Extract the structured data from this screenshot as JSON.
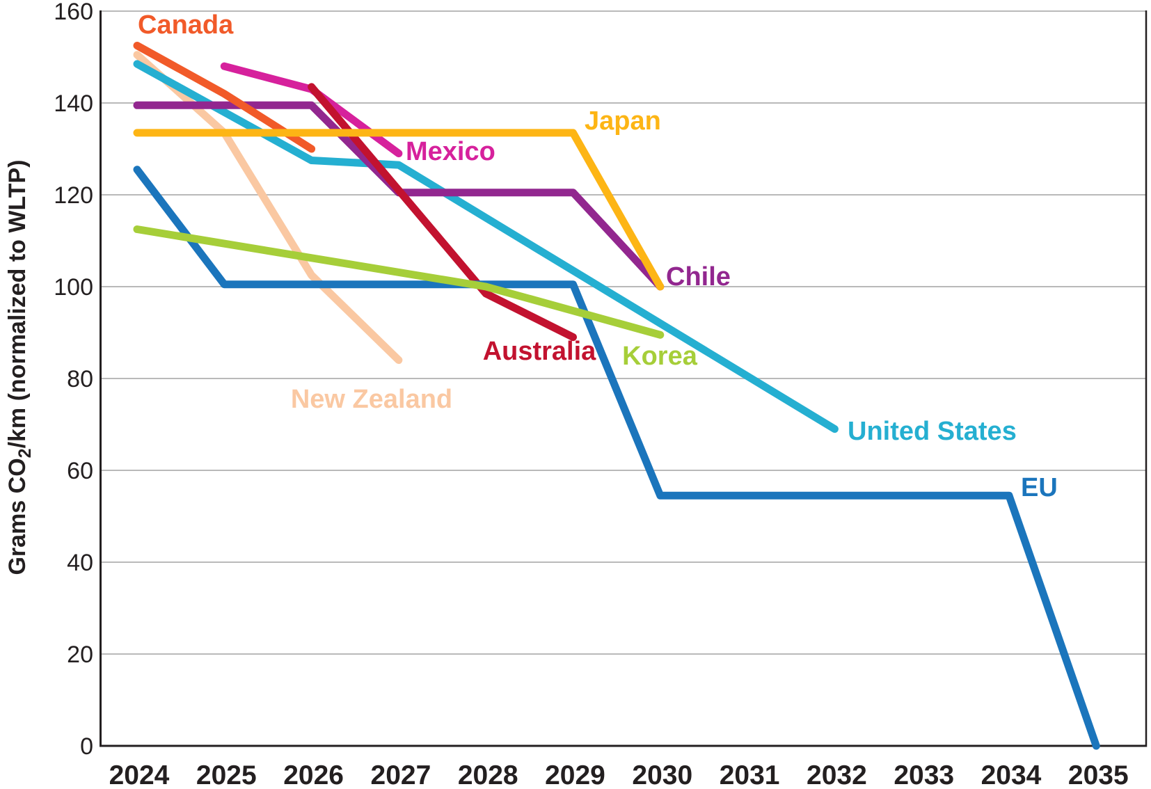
{
  "chart_data": {
    "type": "line",
    "title": "",
    "ylabel_parts": [
      "Grams CO",
      "2",
      "/km (normalized to WLTP)"
    ],
    "xlabel": "",
    "x_ticks": [
      "2024",
      "2025",
      "2026",
      "2027",
      "2028",
      "2029",
      "2030",
      "2031",
      "2032",
      "2033",
      "2034",
      "2035"
    ],
    "y_ticks": [
      "0",
      "20",
      "40",
      "60",
      "80",
      "100",
      "120",
      "140",
      "160"
    ],
    "xlim": [
      2024,
      2035
    ],
    "ylim": [
      0,
      160
    ],
    "grid": "horizontal",
    "legend_position": "inline-labels",
    "axis_color": "#231f20",
    "grid_color": "#b9b9b9",
    "series": [
      {
        "name": "New Zealand",
        "color": "#FAC8A2",
        "points": [
          [
            2024,
            150.5
          ],
          [
            2025,
            133.5
          ],
          [
            2026,
            102.5
          ],
          [
            2027,
            84
          ]
        ]
      },
      {
        "name": "United States",
        "color": "#25AFD1",
        "points": [
          [
            2024,
            148.5
          ],
          [
            2026,
            127.5
          ],
          [
            2027,
            126.5
          ],
          [
            2032,
            69
          ]
        ]
      },
      {
        "name": "Chile",
        "color": "#92278F",
        "points": [
          [
            2024,
            139.5
          ],
          [
            2026,
            139.5
          ],
          [
            2027,
            120.5
          ],
          [
            2029,
            120.5
          ],
          [
            2030,
            100
          ]
        ]
      },
      {
        "name": "Mexico",
        "color": "#D6219C",
        "points": [
          [
            2025,
            148
          ],
          [
            2026,
            143
          ],
          [
            2027,
            129
          ]
        ]
      },
      {
        "name": "Australia",
        "color": "#C2122F",
        "points": [
          [
            2026,
            143.5
          ],
          [
            2028,
            98.5
          ],
          [
            2029,
            89
          ]
        ]
      },
      {
        "name": "Canada",
        "color": "#F15A29",
        "points": [
          [
            2024,
            152.5
          ],
          [
            2025,
            142
          ],
          [
            2026,
            130
          ]
        ]
      },
      {
        "name": "EU",
        "color": "#1B75BC",
        "points": [
          [
            2024,
            125.5
          ],
          [
            2025,
            100.5
          ],
          [
            2029,
            100.5
          ],
          [
            2030,
            54.5
          ],
          [
            2034,
            54.5
          ],
          [
            2035,
            0
          ]
        ]
      },
      {
        "name": "Korea",
        "color": "#A6CE39",
        "points": [
          [
            2024,
            112.5
          ],
          [
            2028,
            100
          ],
          [
            2030,
            89.5
          ]
        ]
      },
      {
        "name": "Japan",
        "color": "#FDB515",
        "points": [
          [
            2024,
            133.5
          ],
          [
            2029,
            133.5
          ],
          [
            2030,
            100
          ]
        ]
      }
    ]
  }
}
